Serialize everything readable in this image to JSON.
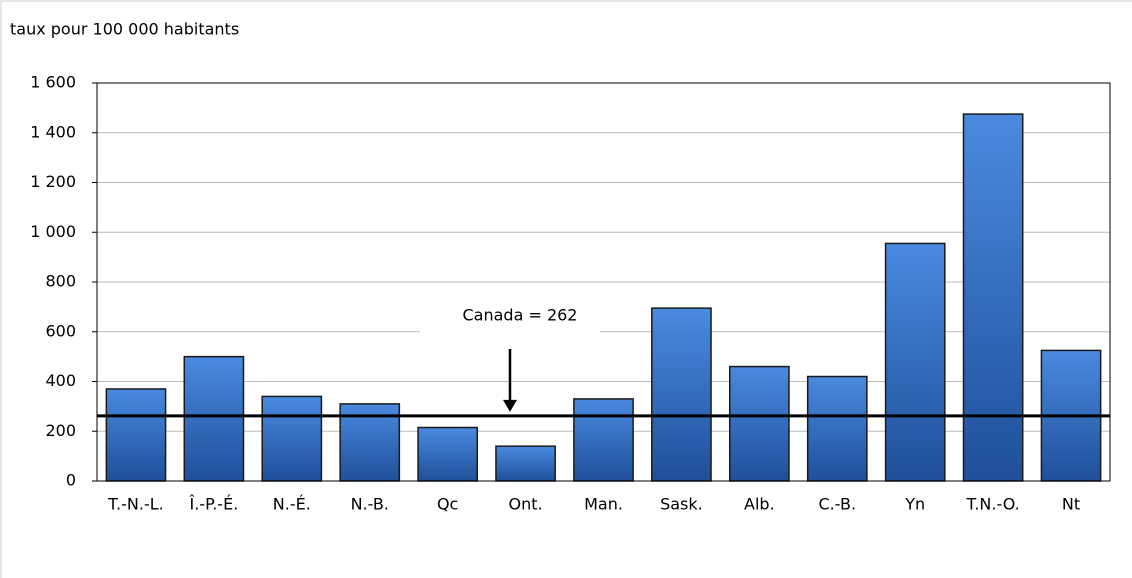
{
  "chart_data": {
    "type": "bar",
    "y_axis_label": "taux pour 100 000 habitants",
    "categories": [
      "T.-N.-L.",
      "Î.-P.-É.",
      "N.-É.",
      "N.-B.",
      "Qc",
      "Ont.",
      "Man.",
      "Sask.",
      "Alb.",
      "C.-B.",
      "Yn",
      "T.N.-O.",
      "Nt"
    ],
    "values": [
      370,
      500,
      340,
      310,
      215,
      140,
      330,
      695,
      460,
      420,
      955,
      1475,
      525
    ],
    "color": "#3a78cc",
    "reference": {
      "value": 262,
      "label": "Canada = 262"
    },
    "ylim": [
      0,
      1600
    ],
    "yticks": [
      0,
      200,
      400,
      600,
      800,
      {
        "value": 1000,
        "label": "1 000"
      },
      {
        "value": 1200,
        "label": "1 200"
      },
      {
        "value": 1400,
        "label": "1 400"
      },
      {
        "value": 1600,
        "label": "1 600"
      }
    ],
    "grid": true
  }
}
